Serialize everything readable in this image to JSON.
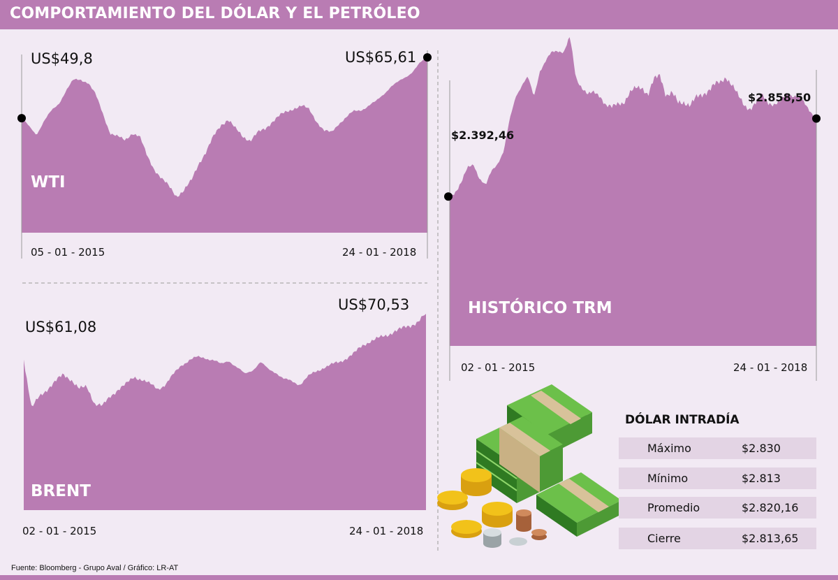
{
  "header": {
    "title": "COMPORTAMIENTO DEL DÓLAR Y EL PETRÓLEO"
  },
  "footer": {
    "source": "Fuente: Bloomberg - Grupo Aval / Gráfico: LR-AT"
  },
  "intraday": {
    "title": "DÓLAR INTRADÍA",
    "rows": [
      {
        "label": "Máximo",
        "value": "$2.830"
      },
      {
        "label": "Mínimo",
        "value": "$2.813"
      },
      {
        "label": "Promedio",
        "value": "$2.820,16"
      },
      {
        "label": "Cierre",
        "value": "$2.813,65"
      }
    ]
  },
  "colors": {
    "area": "#b97cb3",
    "background": "#f2eaf4",
    "header": "#b97cb3",
    "table_row": "#e3d4e4",
    "money_green": "#5aa83a",
    "coin_gold": "#f2c21a"
  },
  "chart_data": [
    {
      "type": "area",
      "name": "WTI",
      "start_label": "US$49,8",
      "end_label": "US$65,61",
      "x_start": "05 - 01 - 2015",
      "x_end": "24 - 01 - 2018",
      "ylim": [
        20,
        70
      ],
      "values": [
        49.8,
        47.5,
        45.6,
        49,
        51.5,
        53.5,
        57,
        59.6,
        59.8,
        59.2,
        56,
        51,
        46,
        45,
        44,
        46,
        45,
        40,
        36.5,
        34,
        32,
        29.5,
        31,
        33.5,
        38,
        41,
        45,
        48,
        49.5,
        47,
        45,
        44,
        46,
        47,
        49,
        50.5,
        51.5,
        52.5,
        53,
        52,
        49,
        46.5,
        46,
        48.5,
        50,
        51.5,
        52,
        53,
        54,
        56,
        58,
        59,
        60.5,
        62,
        64,
        65.61
      ]
    },
    {
      "type": "area",
      "name": "BRENT",
      "start_label": "US$61,08",
      "end_label": "US$70,53",
      "x_start": "02 - 01 - 2015",
      "x_end": "24 - 01 - 2018",
      "ylim": [
        30,
        75
      ],
      "values": [
        61.08,
        51,
        53.5,
        55,
        56.5,
        58,
        57,
        55,
        55.5,
        52,
        51.5,
        53.5,
        55,
        56,
        57.5,
        57,
        56,
        55,
        56,
        58,
        60,
        61,
        61.5,
        61.5,
        61,
        60,
        61,
        59.5,
        58,
        59,
        60.5,
        59,
        58.5,
        57,
        56.5,
        56,
        57.5,
        58.5,
        59.5,
        60,
        60.5,
        61.5,
        62.5,
        64,
        65,
        65.5,
        66,
        67,
        67.5,
        68,
        69,
        70.53
      ]
    },
    {
      "type": "area",
      "name": "HISTÓRICO TRM",
      "start_label": "$2.392,46",
      "end_label": "$2.858,50",
      "x_start": "02 - 01 - 2015",
      "x_end": "24 - 01 - 2018",
      "ylim": [
        1500,
        3400
      ],
      "values": [
        2392.46,
        2430,
        2480,
        2560,
        2590,
        2500,
        2450,
        2550,
        2600,
        2660,
        2850,
        3000,
        3060,
        3100,
        2990,
        3150,
        3200,
        3250,
        3270,
        3260,
        3340,
        3100,
        3050,
        3000,
        3010,
        3000,
        2940,
        2920,
        2950,
        2960,
        3010,
        3040,
        3050,
        3000,
        3090,
        3120,
        3000,
        3010,
        2950,
        2960,
        2940,
        2980,
        3000,
        3030,
        3060,
        3070,
        3110,
        3060,
        2990,
        2940,
        2920,
        2950,
        3000,
        2960,
        2940,
        2950,
        3010,
        3000,
        2980,
        2950,
        2910,
        2858.5
      ]
    }
  ]
}
